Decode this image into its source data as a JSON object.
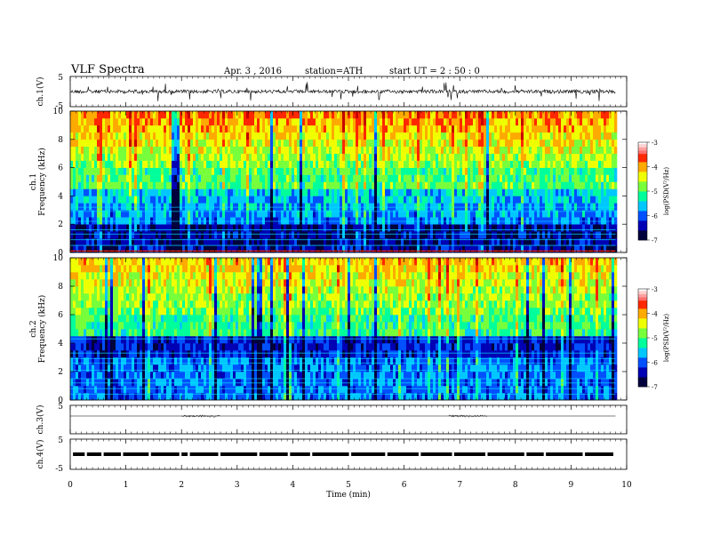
{
  "header": {
    "title": "VLF  Spectra",
    "date": "Apr. 3  , 2016",
    "station": "station=ATH",
    "start_ut": "start  UT =   2 : 50 : 0"
  },
  "chart_data": [
    {
      "type": "line",
      "panel": "ch1-waveform",
      "ylabel": "ch.1(V)",
      "yticks": [
        "5",
        "-5"
      ],
      "ylim": [
        -5,
        5
      ],
      "baseline": 0
    },
    {
      "type": "heatmap",
      "panel": "ch1-spectrogram",
      "ylabel": "ch.1\nFrequency (kHz)",
      "ylabel_lines": [
        "ch.1",
        "Frequency (kHz)"
      ],
      "yticks": [
        "0",
        "2",
        "4",
        "6",
        "8",
        "10"
      ],
      "ylim": [
        0,
        10
      ],
      "colorbar": {
        "label": "log(PSD(V²/Hz)",
        "ticks": [
          "-3",
          "-4",
          "-5",
          "-6",
          "-7"
        ],
        "range": [
          -7,
          -3
        ]
      }
    },
    {
      "type": "heatmap",
      "panel": "ch2-spectrogram",
      "ylabel": "ch.2\nFrequency (kHz)",
      "ylabel_lines": [
        "ch.2",
        "Frequency (kHz)"
      ],
      "yticks": [
        "0",
        "2",
        "4",
        "6",
        "8",
        "10"
      ],
      "ylim": [
        0,
        10
      ],
      "colorbar": {
        "label": "log(PSD(V²/Hz)",
        "ticks": [
          "-3",
          "-4",
          "-5",
          "-6",
          "-7"
        ],
        "range": [
          -7,
          -3
        ]
      }
    },
    {
      "type": "line",
      "panel": "ch3-waveform",
      "ylabel": "ch.3(V)",
      "yticks": [
        "5"
      ],
      "ylim": [
        -5,
        5
      ]
    },
    {
      "type": "line",
      "panel": "ch4-waveform",
      "ylabel": "ch.4(V)",
      "yticks": [
        "5",
        "-5"
      ],
      "ylim": [
        -5,
        5
      ]
    }
  ],
  "xaxis": {
    "label": "Time  (min)",
    "ticks": [
      "0",
      "1",
      "2",
      "3",
      "4",
      "5",
      "6",
      "7",
      "8",
      "9",
      "10"
    ],
    "xlim": [
      0,
      10
    ],
    "data_end": 9.8
  },
  "colors": {
    "colormap": [
      "#00003c",
      "#0000b4",
      "#0050ff",
      "#00c8ff",
      "#00ff9b",
      "#78ff3c",
      "#f0ff00",
      "#ffaa00",
      "#ff2800",
      "#c80000",
      "#ffffff"
    ]
  }
}
